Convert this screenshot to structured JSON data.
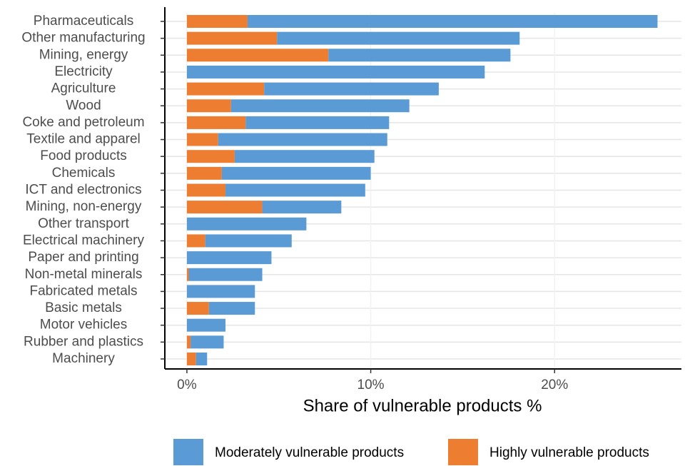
{
  "chart_data": {
    "type": "stacked-bar-horizontal",
    "x_label": "Share of vulnerable products %",
    "categories": [
      "Pharmaceuticals",
      "Other manufacturing",
      "Mining, energy",
      "Electricity",
      "Agriculture",
      "Wood",
      "Coke and petroleum",
      "Textile and apparel",
      "Food products",
      "Chemicals",
      "ICT and electronics",
      "Mining, non-energy",
      "Other transport",
      "Electrical machinery",
      "Paper and printing",
      "Non-metal minerals",
      "Fabricated metals",
      "Basic metals",
      "Motor vehicles",
      "Rubber and plastics",
      "Machinery"
    ],
    "series": [
      {
        "name": "Moderately vulnerable products",
        "color": "#5b9bd5",
        "values": [
          22.3,
          13.2,
          9.9,
          16.2,
          9.5,
          9.7,
          7.8,
          9.2,
          7.6,
          8.1,
          7.6,
          4.3,
          6.5,
          4.7,
          4.6,
          4.0,
          3.7,
          2.5,
          2.1,
          1.8,
          0.6
        ]
      },
      {
        "name": "Highly vulnerable products",
        "color": "#ed7d31",
        "values": [
          3.3,
          4.9,
          7.7,
          0,
          4.2,
          2.4,
          3.2,
          1.7,
          2.6,
          1.9,
          2.1,
          4.1,
          0,
          1.0,
          0,
          0.1,
          0,
          1.2,
          0,
          0.2,
          0.5
        ]
      }
    ],
    "xlim": [
      -1.2,
      26.9
    ],
    "xticks": [
      {
        "value": 0,
        "label": "0%"
      },
      {
        "value": 10,
        "label": "10%"
      },
      {
        "value": 20,
        "label": "20%"
      }
    ],
    "grid": true,
    "legend": "bottom"
  }
}
